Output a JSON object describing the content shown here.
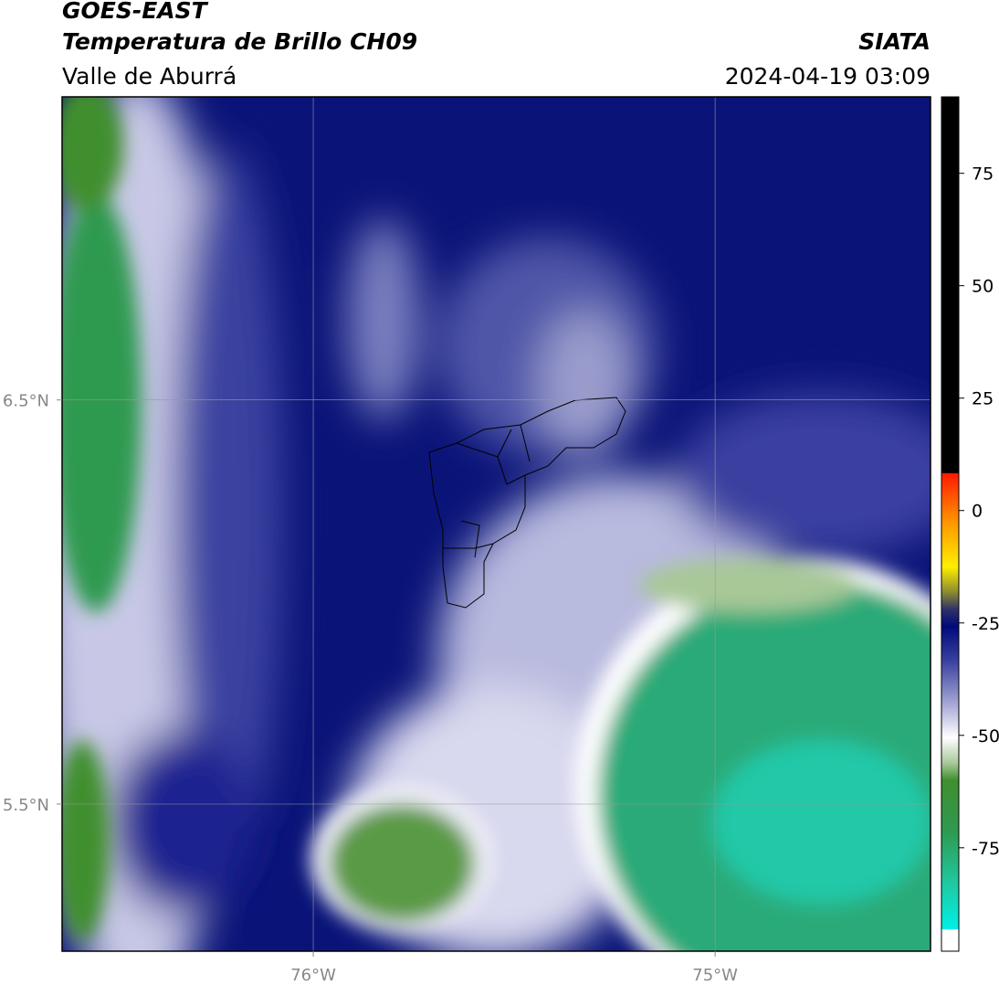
{
  "header": {
    "title": "GOES-EAST",
    "subtitle": "Temperatura de Brillo CH09",
    "region": "Valle de Aburrá",
    "source": "SIATA",
    "datetime": "2024-04-19 03:09"
  },
  "map": {
    "xlim": [
      -76.625,
      -74.464
    ],
    "ylim": [
      5.136,
      7.25
    ],
    "xticks": [
      {
        "value": -76,
        "label": "76°W"
      },
      {
        "value": -75,
        "label": "75°W"
      }
    ],
    "yticks": [
      {
        "value": 5.5,
        "label": "5.5°N"
      },
      {
        "value": 6.5,
        "label": "6.5°N"
      }
    ],
    "grid": true
  },
  "colorbar": {
    "lim": [
      -98,
      92
    ],
    "ticks": [
      75,
      50,
      25,
      0,
      -25,
      -50,
      -75
    ]
  }
}
